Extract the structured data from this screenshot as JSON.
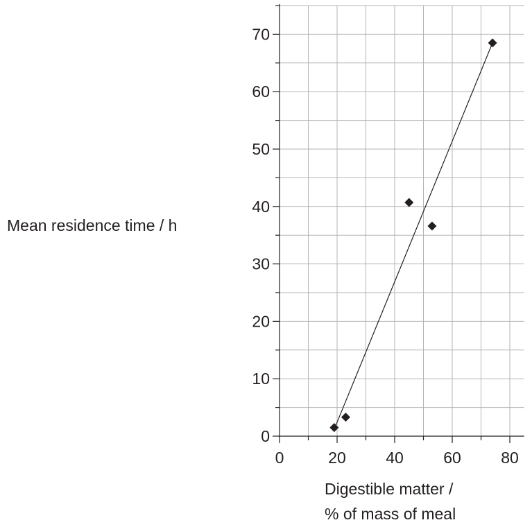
{
  "chart_data": {
    "type": "scatter",
    "title": "",
    "xlabel_lines": [
      "Digestible matter /",
      "% of mass of meal"
    ],
    "ylabel": "Mean residence time / h",
    "xlim": [
      0,
      85
    ],
    "ylim": [
      0,
      75
    ],
    "x_ticks": [
      "0",
      "20",
      "40",
      "60",
      "80"
    ],
    "y_ticks": [
      "0",
      "10",
      "20",
      "30",
      "40",
      "50",
      "60",
      "70"
    ],
    "grid": true,
    "points": [
      {
        "x": 19,
        "y": 1.5
      },
      {
        "x": 23,
        "y": 3.3
      },
      {
        "x": 45,
        "y": 40.7
      },
      {
        "x": 53,
        "y": 36.6
      },
      {
        "x": 74,
        "y": 68.5
      }
    ],
    "trend_line": [
      {
        "x": 19,
        "y": 1.2
      },
      {
        "x": 74,
        "y": 68.5
      }
    ],
    "colors": {
      "ink": "#231f20",
      "grid": "#b3b3b3",
      "marker": "#231f20"
    }
  }
}
